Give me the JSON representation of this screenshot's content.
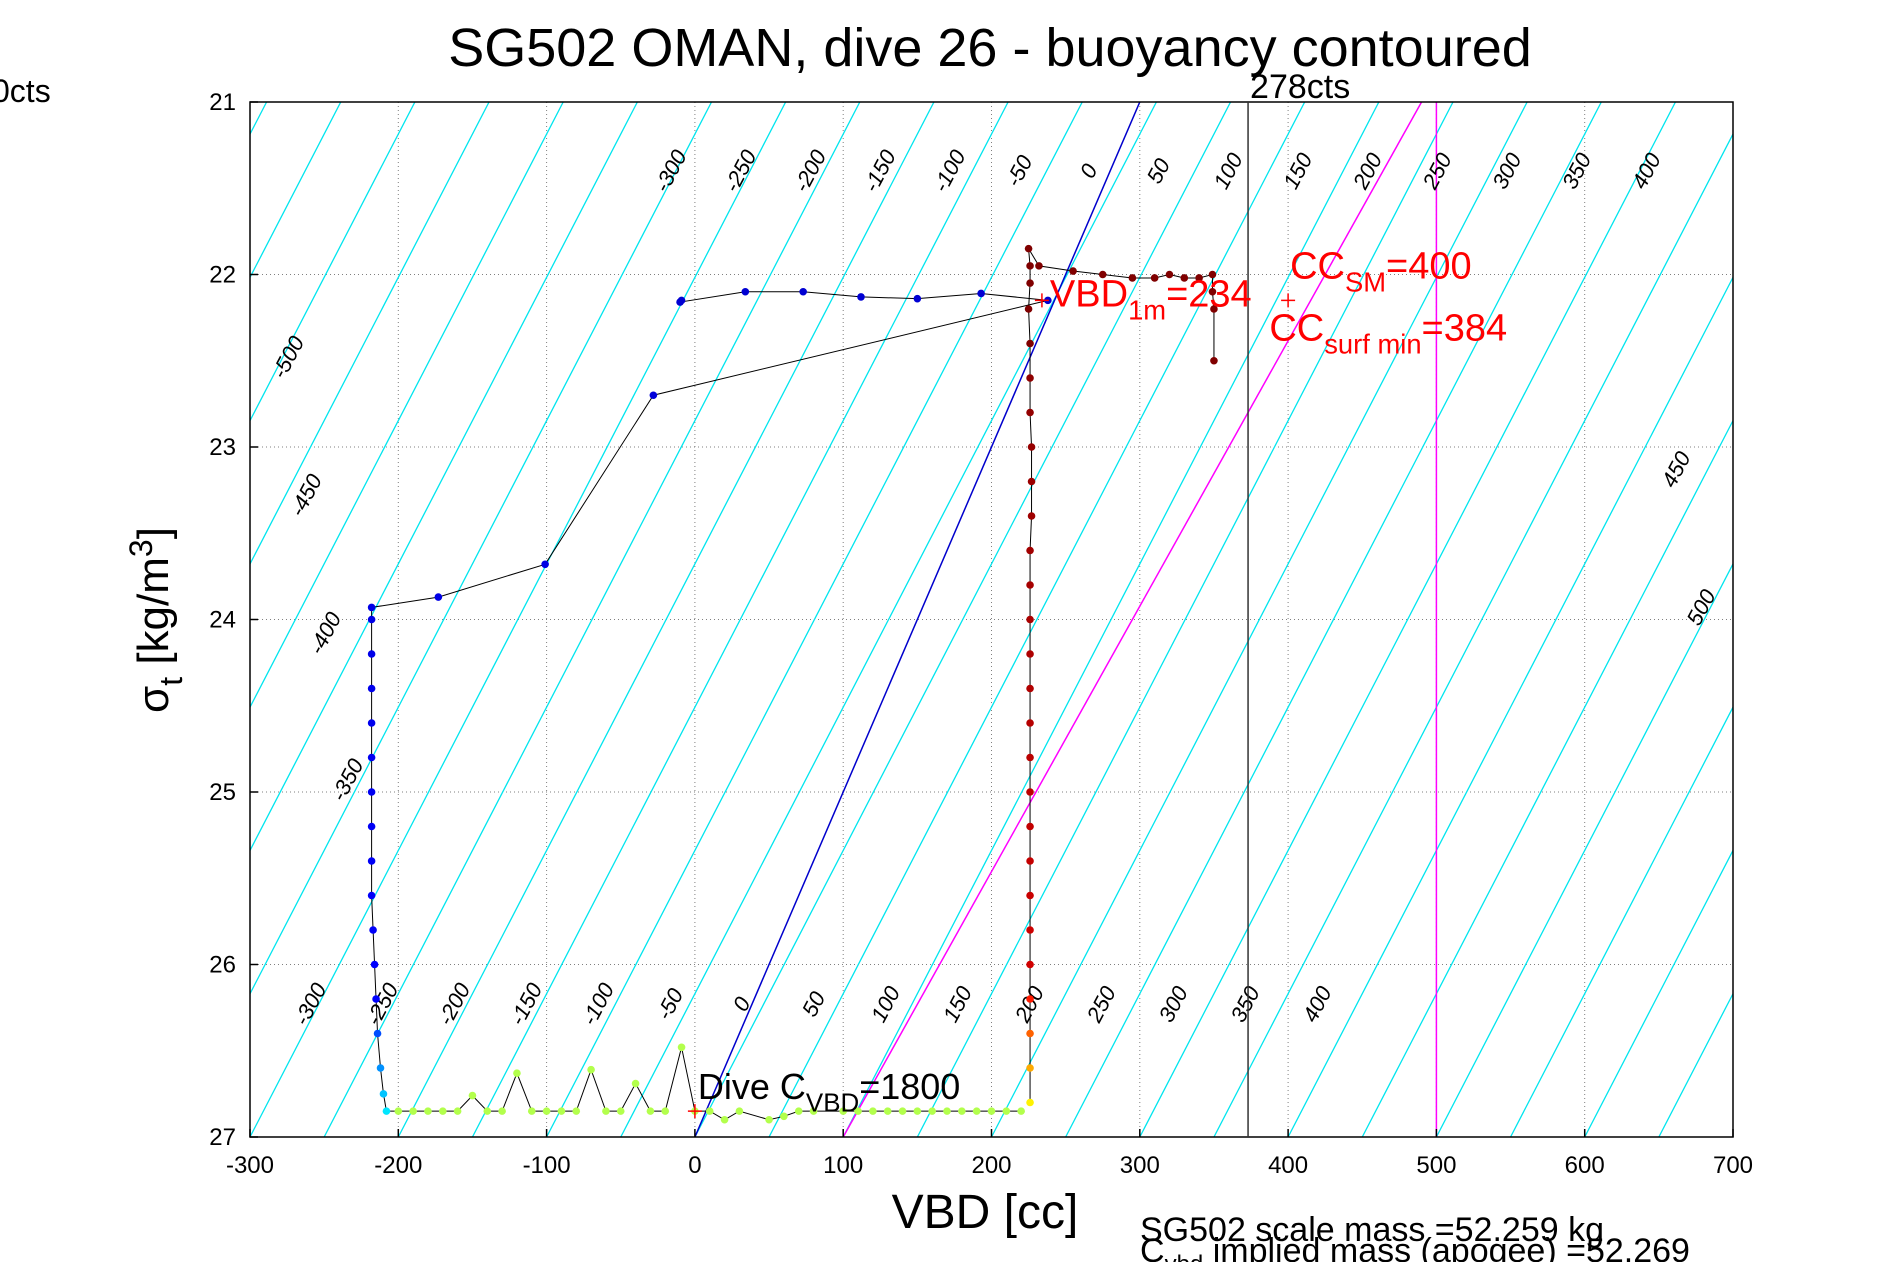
{
  "window_label_left": "0cts",
  "footer": {
    "scale_mass": "SG502 scale mass =52.259 kg",
    "implied_mass_prefix": "C",
    "implied_mass_sub": "vbd",
    "implied_mass_rest": " implied mass (apogee) =52.269"
  },
  "colors": {
    "buoyancy_lines": "#00e5ee",
    "zero_line": "#0000cc",
    "magenta_lines": "#ff00ff",
    "grid": "#7f7f7f",
    "annotation": "#ff0000",
    "text": "#000000"
  },
  "chart_data": {
    "type": "scatter",
    "title": "SG502 OMAN, dive 26 - buoyancy contoured",
    "xlabel": "VBD [cc]",
    "ylabel_main": "σ",
    "ylabel_sub": "t",
    "ylabel_units": " [kg/m",
    "ylabel_sup": "3",
    "ylabel_close": "]",
    "xlim": [
      -300,
      700
    ],
    "ylim": [
      21,
      27
    ],
    "y_reversed": true,
    "grid": true,
    "x_ticks": [
      -300,
      -200,
      -100,
      0,
      100,
      200,
      300,
      400,
      500,
      600,
      700
    ],
    "x_tick_labels": [
      "-300",
      "-200",
      "-100",
      "0",
      "100",
      "200",
      "300",
      "400",
      "500",
      "600",
      "700"
    ],
    "y_ticks": [
      21,
      22,
      23,
      24,
      25,
      26,
      27
    ],
    "y_tick_labels": [
      "21",
      "22",
      "23",
      "24",
      "25",
      "26",
      "27"
    ],
    "buoyancy_contours": {
      "intercepts_at_sigma_27": [
        -750,
        -700,
        -650,
        -600,
        -550,
        -500,
        -450,
        -400,
        -350,
        -300,
        -250,
        -200,
        -150,
        -100,
        -50,
        0,
        50,
        100,
        150,
        200,
        250,
        300,
        350,
        400,
        450,
        500,
        550,
        600,
        650,
        700
      ],
      "vbd_shift_per_sigma": -60.2,
      "zero_line": {
        "x_at_sigma_21": 300,
        "x_at_sigma_27": 0
      },
      "magenta_lines": [
        {
          "x_at_sigma_21": 490,
          "x_at_sigma_27": 100
        },
        {
          "x_at_sigma_21": 500,
          "x_at_sigma_27": 500
        }
      ],
      "top_labels": [
        "-300",
        "-250",
        "-200",
        "-150",
        "-100",
        "-50",
        "0",
        "50",
        "100",
        "150",
        "200",
        "250",
        "300",
        "350",
        "400"
      ],
      "bottom_labels": [
        "-300",
        "-250",
        "-200",
        "-150",
        "-100",
        "-50",
        "0",
        "50",
        "100",
        "150",
        "200",
        "250",
        "300",
        "350",
        "400"
      ],
      "left_labels": [
        "-500",
        "-450",
        "-400",
        "-350"
      ],
      "right_labels": [
        "450",
        "500"
      ]
    },
    "vertical_marker": {
      "x": 373,
      "label": "278cts"
    },
    "annotations": {
      "dive_cvbd": {
        "prefix": "Dive C",
        "sub": "VBD",
        "suffix": "=1800",
        "x": 0,
        "y": 26.85
      },
      "vbd_1m": {
        "prefix": "VBD",
        "sub": "1m",
        "suffix": "=234",
        "x": 234,
        "y": 22.15
      },
      "cc_sm": {
        "prefix": "CC",
        "sub": "SM",
        "suffix": "=400",
        "x": 400,
        "y": 22.15
      },
      "cc_surf_min": {
        "prefix": "CC",
        "sub": "surf min",
        "suffix": "=384",
        "x": 384,
        "y": 22.15
      }
    },
    "series": [
      {
        "name": "dive",
        "points": [
          [
            -9,
            22.15
          ],
          [
            -10,
            22.16
          ],
          [
            34,
            22.1
          ],
          [
            73,
            22.1
          ],
          [
            112,
            22.13
          ],
          [
            150,
            22.14
          ],
          [
            193,
            22.11
          ],
          [
            238,
            22.15
          ],
          [
            -28,
            22.7
          ],
          [
            -101,
            23.68
          ],
          [
            -173,
            23.87
          ],
          [
            -218,
            23.93
          ],
          [
            -218,
            24.0
          ],
          [
            -218,
            24.2
          ],
          [
            -218,
            24.4
          ],
          [
            -218,
            24.6
          ],
          [
            -218,
            24.8
          ],
          [
            -218,
            25.0
          ],
          [
            -218,
            25.2
          ],
          [
            -218,
            25.4
          ],
          [
            -218,
            25.6
          ],
          [
            -217,
            25.8
          ],
          [
            -216,
            26.0
          ],
          [
            -215,
            26.2
          ],
          [
            -214,
            26.4
          ],
          [
            -212,
            26.6
          ],
          [
            -210,
            26.75
          ],
          [
            -208,
            26.85
          ],
          [
            -200,
            26.85
          ],
          [
            -190,
            26.85
          ],
          [
            -180,
            26.85
          ],
          [
            -170,
            26.85
          ],
          [
            -160,
            26.85
          ],
          [
            -150,
            26.76
          ],
          [
            -140,
            26.85
          ],
          [
            -130,
            26.85
          ],
          [
            -120,
            26.63
          ],
          [
            -110,
            26.85
          ],
          [
            -100,
            26.85
          ],
          [
            -90,
            26.85
          ],
          [
            -80,
            26.85
          ],
          [
            -70,
            26.61
          ],
          [
            -60,
            26.85
          ],
          [
            -50,
            26.85
          ],
          [
            -40,
            26.69
          ],
          [
            -30,
            26.85
          ],
          [
            -20,
            26.85
          ],
          [
            -9,
            26.48
          ],
          [
            0,
            26.85
          ],
          [
            10,
            26.85
          ],
          [
            20,
            26.9
          ],
          [
            30,
            26.85
          ],
          [
            50,
            26.9
          ],
          [
            60,
            26.88
          ],
          [
            70,
            26.85
          ],
          [
            80,
            26.85
          ],
          [
            100,
            26.85
          ],
          [
            110,
            26.85
          ],
          [
            120,
            26.85
          ],
          [
            130,
            26.85
          ],
          [
            140,
            26.85
          ],
          [
            150,
            26.85
          ],
          [
            160,
            26.85
          ],
          [
            170,
            26.85
          ],
          [
            180,
            26.85
          ],
          [
            190,
            26.85
          ],
          [
            200,
            26.85
          ],
          [
            210,
            26.85
          ],
          [
            220,
            26.85
          ]
        ]
      },
      {
        "name": "climb",
        "points": [
          [
            226,
            26.8
          ],
          [
            226,
            26.6
          ],
          [
            226,
            26.4
          ],
          [
            226,
            26.2
          ],
          [
            226,
            26.0
          ],
          [
            226,
            25.8
          ],
          [
            226,
            25.6
          ],
          [
            226,
            25.4
          ],
          [
            226,
            25.2
          ],
          [
            226,
            25.0
          ],
          [
            226,
            24.8
          ],
          [
            226,
            24.6
          ],
          [
            226,
            24.4
          ],
          [
            226,
            24.2
          ],
          [
            226,
            24.0
          ],
          [
            226,
            23.8
          ],
          [
            226,
            23.6
          ],
          [
            227,
            23.4
          ],
          [
            227,
            23.2
          ],
          [
            227,
            23.0
          ],
          [
            226,
            22.8
          ],
          [
            226,
            22.6
          ],
          [
            226,
            22.4
          ],
          [
            225,
            22.2
          ],
          [
            226,
            22.05
          ],
          [
            226,
            21.95
          ],
          [
            225,
            21.85
          ],
          [
            232,
            21.95
          ],
          [
            255,
            21.98
          ],
          [
            275,
            22.0
          ],
          [
            295,
            22.02
          ],
          [
            310,
            22.02
          ],
          [
            320,
            22.0
          ],
          [
            330,
            22.02
          ],
          [
            340,
            22.02
          ],
          [
            349,
            22.0
          ],
          [
            349,
            22.1
          ],
          [
            350,
            22.2
          ],
          [
            350,
            22.5
          ]
        ]
      }
    ]
  }
}
